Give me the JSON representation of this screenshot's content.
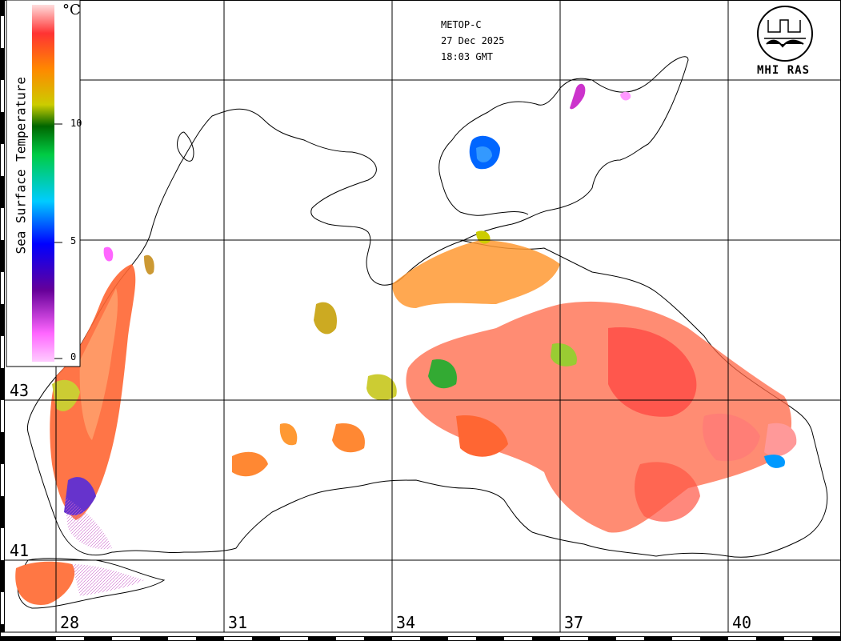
{
  "header": {
    "satellite": "METOP-C",
    "date": "27 Dec 2025",
    "time": "18:03 GMT"
  },
  "legend": {
    "title": "Sea Surface Temperature",
    "unit": "°C",
    "ticks": [
      "10",
      "5",
      "0"
    ],
    "colors": [
      "#ff66ff",
      "#660099",
      "#0000ff",
      "#00ccff",
      "#00cc00",
      "#cccc00",
      "#ff8800",
      "#ff3333",
      "#ffcccc"
    ]
  },
  "grid": {
    "latitudes": [
      "43",
      "41"
    ],
    "longitudes": [
      "28",
      "31",
      "34",
      "37",
      "40"
    ]
  },
  "logo": {
    "org": "MHI RAS"
  }
}
